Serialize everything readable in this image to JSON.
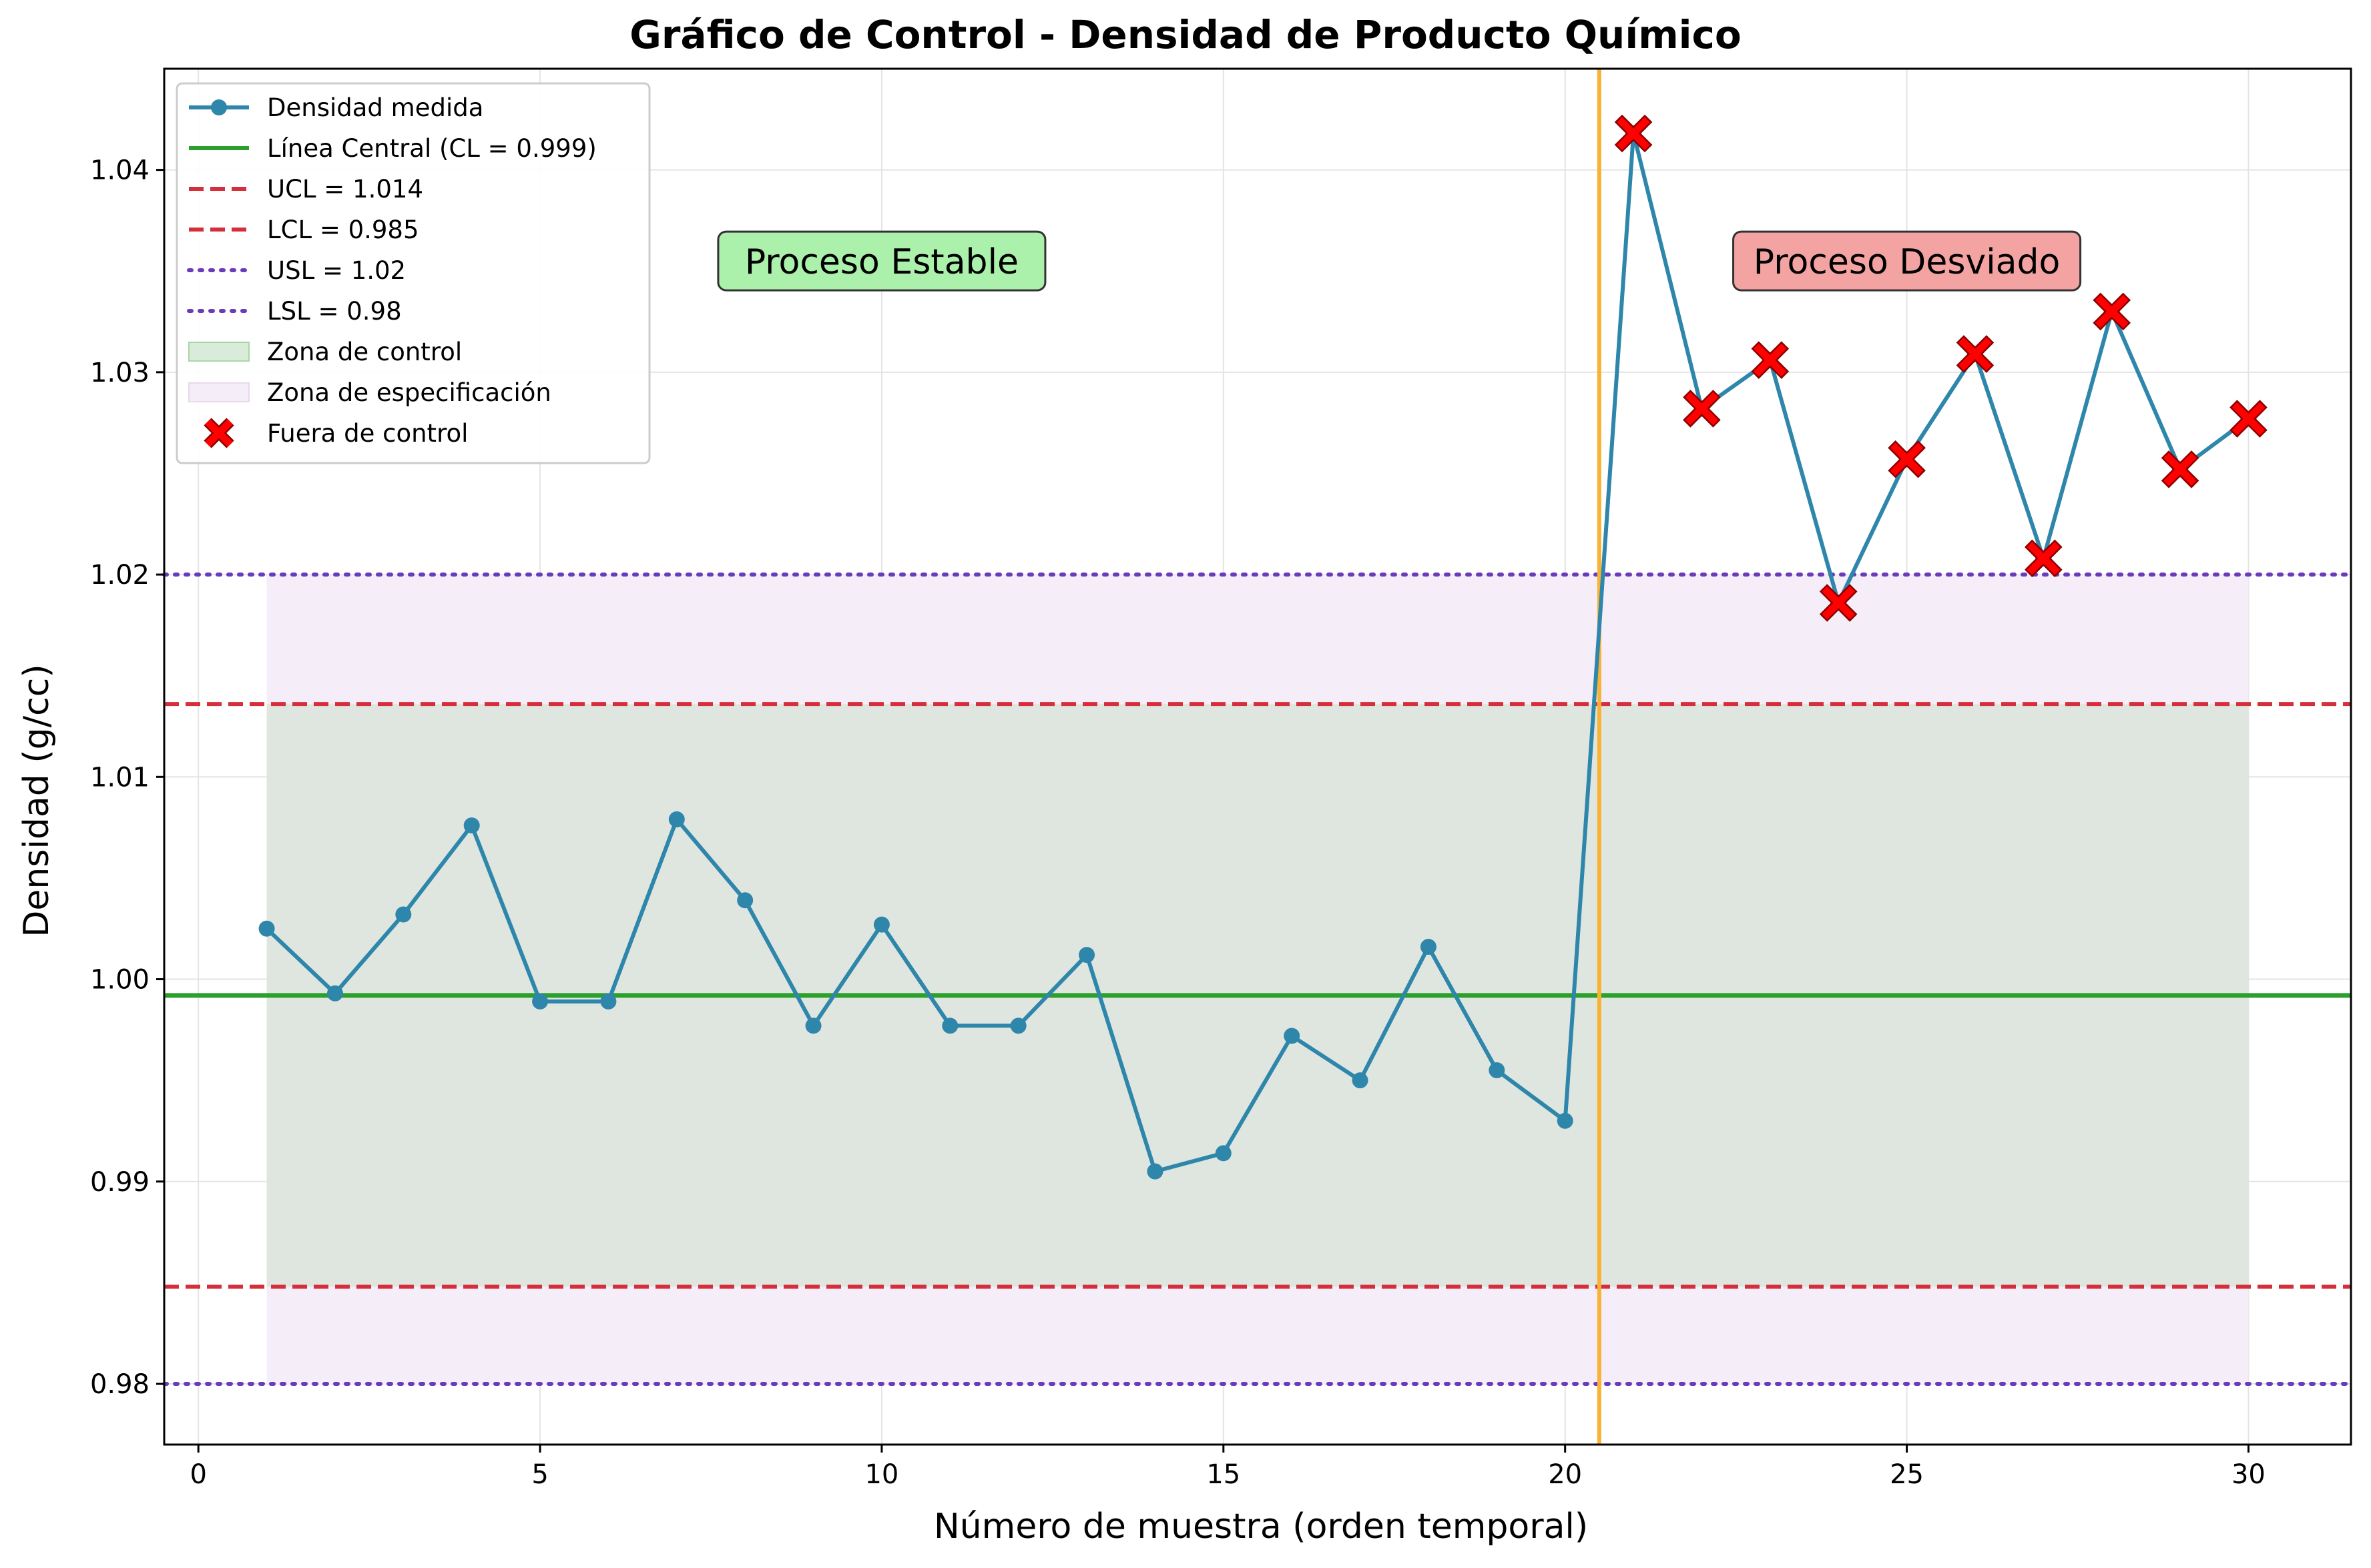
{
  "chart_data": {
    "type": "line",
    "title": "Gráfico de Control - Densidad de Producto Químico",
    "xlabel": "Número de muestra (orden temporal)",
    "ylabel": "Densidad (g/cc)",
    "xlim": [
      -0.5,
      31.5
    ],
    "ylim": [
      0.977,
      1.045
    ],
    "xticks": [
      0,
      5,
      10,
      15,
      20,
      25,
      30
    ],
    "xtick_labels": [
      "0",
      "5",
      "10",
      "15",
      "20",
      "25",
      "30"
    ],
    "yticks": [
      0.98,
      0.99,
      1.0,
      1.01,
      1.02,
      1.03,
      1.04
    ],
    "ytick_labels": [
      "0.98",
      "0.99",
      "1.00",
      "1.01",
      "1.02",
      "1.03",
      "1.04"
    ],
    "grid": true,
    "legend_position": "top-left",
    "series": [
      {
        "name": "Densidad medida",
        "color": "#2e86ab",
        "x": [
          1,
          2,
          3,
          4,
          5,
          6,
          7,
          8,
          9,
          10,
          11,
          12,
          13,
          14,
          15,
          16,
          17,
          18,
          19,
          20,
          21,
          22,
          23,
          24,
          25,
          26,
          27,
          28,
          29,
          30
        ],
        "y": [
          1.0025,
          0.9993,
          1.0032,
          1.0076,
          0.9989,
          0.9989,
          1.0079,
          1.0039,
          0.9977,
          1.0027,
          0.9977,
          0.9977,
          1.0012,
          0.9905,
          0.9914,
          0.9972,
          0.995,
          1.0016,
          0.9955,
          0.993,
          1.0418,
          1.0282,
          1.0306,
          1.0186,
          1.0257,
          1.0309,
          1.0208,
          1.033,
          1.0252,
          1.0277
        ]
      }
    ],
    "out_of_control": {
      "name": "Fuera de control",
      "color": "#ff0000",
      "x": [
        21,
        22,
        23,
        24,
        25,
        26,
        27,
        28,
        29,
        30
      ]
    },
    "reference_lines": [
      {
        "name": "Línea Central (CL = 0.999)",
        "value": 0.9992,
        "style": "solid",
        "color": "#2ca02c"
      },
      {
        "name": "UCL = 1.014",
        "value": 1.0136,
        "style": "dashed",
        "color": "#d62f3c"
      },
      {
        "name": "LCL = 0.985",
        "value": 0.9848,
        "style": "dashed",
        "color": "#d62f3c"
      },
      {
        "name": "USL = 1.02",
        "value": 1.02,
        "style": "dotted",
        "color": "#6a3cbc"
      },
      {
        "name": "LSL = 0.98",
        "value": 0.98,
        "style": "dotted",
        "color": "#6a3cbc"
      }
    ],
    "zones": [
      {
        "name": "Zona de especificación",
        "x_start": 1,
        "x_end": 30,
        "y_low": 0.98,
        "y_high": 1.02,
        "color": "#f5eef8"
      },
      {
        "name": "Zona de control",
        "x_start": 1,
        "x_end": 30,
        "y_low": 0.9848,
        "y_high": 1.0136,
        "color": "#dfe6df"
      }
    ],
    "shift_line": {
      "x": 20.5,
      "color": "#f9b233"
    },
    "annotations": [
      {
        "text": "Proceso Estable",
        "x": 10,
        "y": 1.0355,
        "bg": "#abf0ab"
      },
      {
        "text": "Proceso Desviado",
        "x": 25,
        "y": 1.0355,
        "bg": "#f4a3a3"
      }
    ]
  }
}
